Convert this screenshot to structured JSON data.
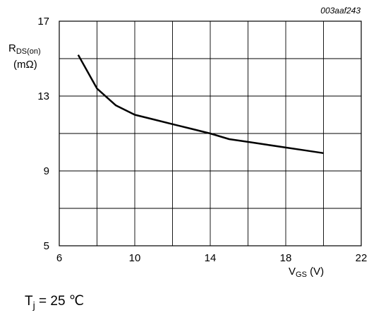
{
  "figure_id": "003aaf243",
  "y_axis": {
    "symbol": "R",
    "subscript": "DS(on)",
    "unit": "(mΩ)"
  },
  "x_axis": {
    "symbol": "V",
    "subscript": "GS",
    "unit": " (V)"
  },
  "note": {
    "symbol": "T",
    "subscript": "j",
    "rest": " = 25 ℃"
  },
  "chart_data": {
    "type": "line",
    "title": "",
    "xlabel": "VGS (V)",
    "ylabel": "RDS(on) (mΩ)",
    "xlim": [
      6,
      22
    ],
    "ylim": [
      5,
      17
    ],
    "x_ticks": [
      6,
      10,
      14,
      18,
      22
    ],
    "y_ticks": [
      5,
      9,
      13,
      17
    ],
    "grid": true,
    "series": [
      {
        "x": [
          7,
          8,
          9,
          10,
          11,
          12,
          13,
          14,
          15,
          16,
          17,
          18,
          19,
          20
        ],
        "y": [
          15.2,
          13.4,
          12.5,
          12.0,
          11.75,
          11.5,
          11.25,
          11.0,
          10.7,
          10.55,
          10.4,
          10.25,
          10.1,
          9.95
        ]
      }
    ]
  }
}
